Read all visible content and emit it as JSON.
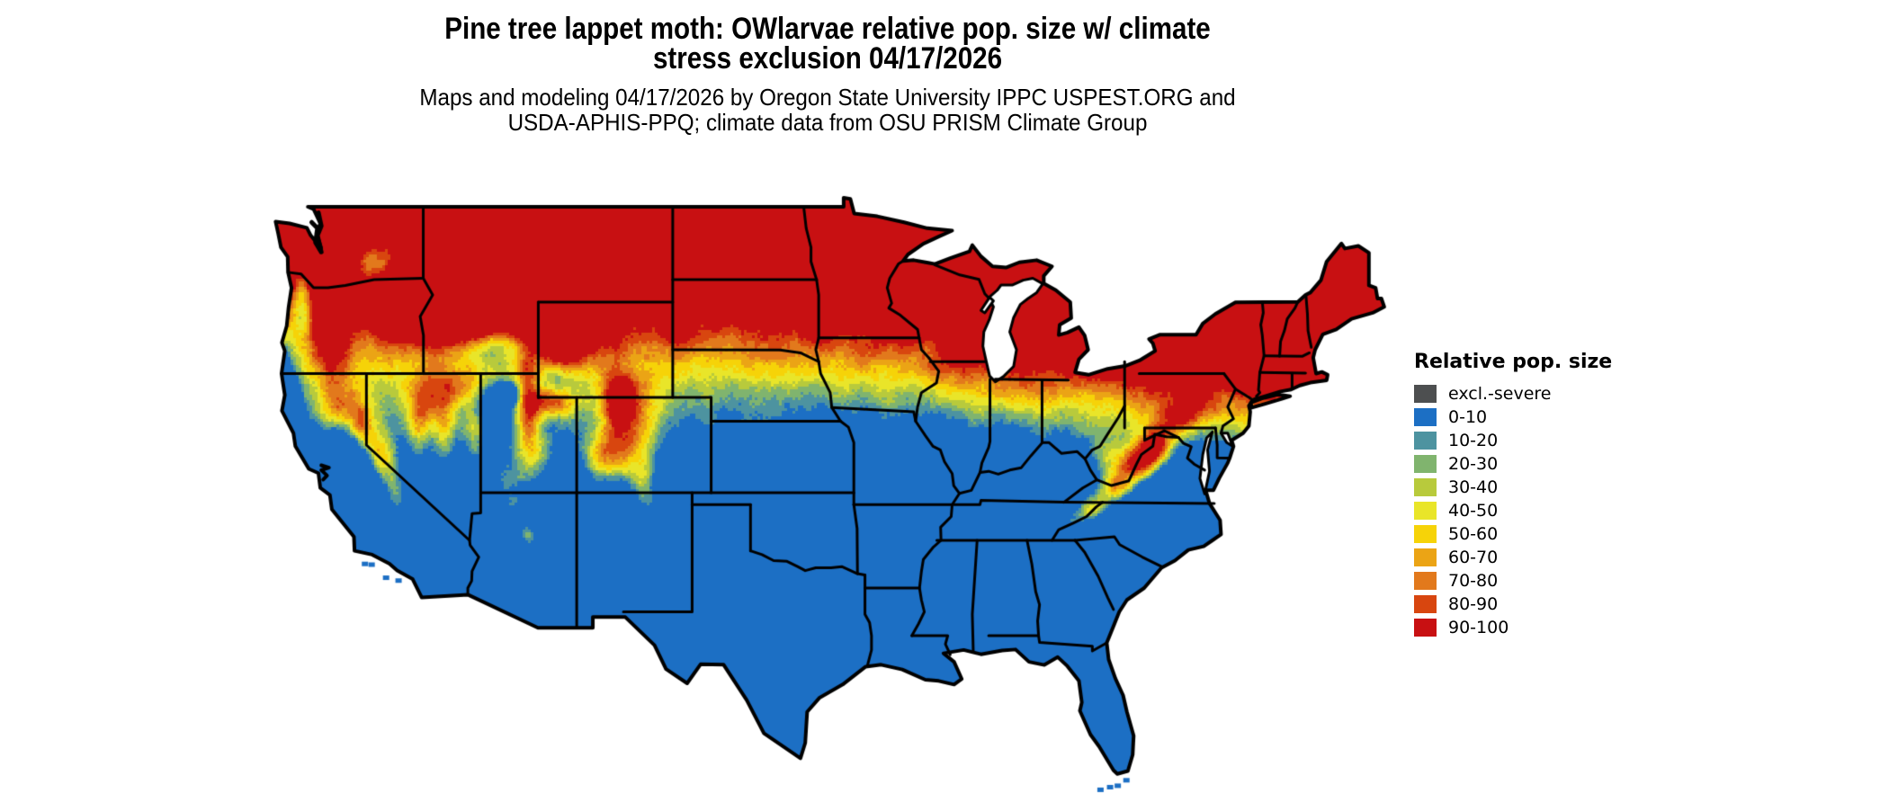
{
  "title": {
    "line1": "Pine tree lappet moth: OWlarvae relative pop. size w/ climate",
    "line2": "stress exclusion 04/17/2026"
  },
  "subtitle": {
    "line1": "Maps and modeling 04/17/2026 by Oregon State University IPPC USPEST.ORG and",
    "line2": "USDA-APHIS-PPQ; climate data from OSU PRISM Climate Group"
  },
  "legend": {
    "title": "Relative pop. size",
    "items": [
      {
        "label": "excl.-severe",
        "color": "#4d4f50"
      },
      {
        "label": "0-10",
        "color": "#1c6fc4"
      },
      {
        "label": "10-20",
        "color": "#4d93a0"
      },
      {
        "label": "20-30",
        "color": "#80b46e"
      },
      {
        "label": "30-40",
        "color": "#b8ca3c"
      },
      {
        "label": "40-50",
        "color": "#e9e529"
      },
      {
        "label": "50-60",
        "color": "#f6d308"
      },
      {
        "label": "60-70",
        "color": "#eba415"
      },
      {
        "label": "70-80",
        "color": "#e2791c"
      },
      {
        "label": "80-90",
        "color": "#d8460f"
      },
      {
        "label": "90-100",
        "color": "#c81012"
      }
    ]
  },
  "chart_data": {
    "type": "heatmap",
    "title": "Pine tree lappet moth: OWlarvae relative pop. size w/ climate stress exclusion 04/17/2026",
    "variable": "Relative pop. size (percent classes)",
    "date_shown": "04/17/2026",
    "region": "Continental United States with state boundaries",
    "projection": "equirectangular (lon/lat grid map)",
    "extent": {
      "lon_min": -124.8,
      "lon_max": -66.9,
      "lat_min": 24.5,
      "lat_max": 49.4
    },
    "classes": [
      {
        "label": "excl.-severe",
        "color": "#4d4f50"
      },
      {
        "label": "0-10",
        "color": "#1c6fc4"
      },
      {
        "label": "10-20",
        "color": "#4d93a0"
      },
      {
        "label": "20-30",
        "color": "#80b46e"
      },
      {
        "label": "30-40",
        "color": "#b8ca3c"
      },
      {
        "label": "40-50",
        "color": "#e9e529"
      },
      {
        "label": "50-60",
        "color": "#f6d308"
      },
      {
        "label": "60-70",
        "color": "#eba415"
      },
      {
        "label": "70-80",
        "color": "#e2791c"
      },
      {
        "label": "80-90",
        "color": "#d8460f"
      },
      {
        "label": "90-100",
        "color": "#c81012"
      }
    ],
    "pattern_summary": [
      "Northern tier (WA, MT, ND, MN, WI, MI, upstate NY, New England) mapped 90-100 (red)",
      "Transition band tilts from ~lat 40-44.5 in the plains (NE, IA, northern MO edge) to ~lat 39-41.5 in the east (OH, PA, NJ): orange-yellow-green-teal gradient",
      "Entire south and southeast (CA valleys/coast, southern AZ/NM deserts, TX, OK, KS, gulf and south Atlantic states, FL) mapped 0-10 (blue)",
      "Western mountain ranges (Cascades, Sierra Nevada, Idaho/Montana Rockies, Wasatch, Colorado Rockies into NM, Mogollon Rim) mapped 70-100 (orange-red) at southern latitudes",
      "Appalachians (Smokies through WV highlands into PA ridges) show teal-green band with yellow-orange cores over blue lowlands",
      "Great Lakes, ocean and Chesapeake/Delaware bays shown white (no data)"
    ],
    "legend_position": "right"
  }
}
